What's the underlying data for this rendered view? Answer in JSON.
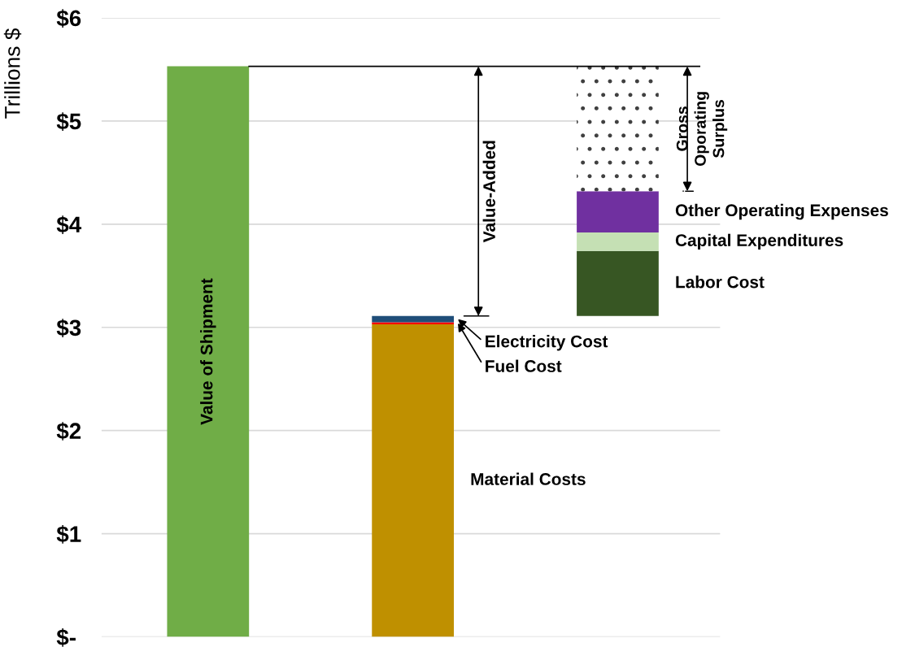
{
  "chart_data": {
    "type": "bar",
    "ylabel": "Trillions $",
    "categories": [
      null,
      null,
      null
    ],
    "series": [
      {
        "name": "Value of Shipment",
        "color": "#70ad47",
        "values": [
          5.53,
          null,
          null
        ],
        "base": [
          0,
          null,
          null
        ]
      },
      {
        "name": "Material Costs",
        "color": "#bf9000",
        "values": [
          null,
          3.03,
          null
        ],
        "base": [
          null,
          0,
          null
        ]
      },
      {
        "name": "Fuel Cost",
        "color": "#ff0000",
        "values": [
          null,
          0.02,
          null
        ],
        "base": [
          null,
          3.03,
          null
        ]
      },
      {
        "name": "Electricity Cost",
        "color": "#1f4e79",
        "values": [
          null,
          0.06,
          null
        ],
        "base": [
          null,
          3.05,
          null
        ]
      },
      {
        "name": "Labor Cost",
        "color": "#375623",
        "values": [
          null,
          null,
          0.63
        ],
        "base": [
          null,
          null,
          3.11
        ]
      },
      {
        "name": "Capital Expenditures",
        "color": "#c5e0b4",
        "values": [
          null,
          null,
          0.18
        ],
        "base": [
          null,
          null,
          3.74
        ]
      },
      {
        "name": "Other Operating Expenses",
        "color": "#7030a0",
        "values": [
          null,
          null,
          0.4
        ],
        "base": [
          null,
          null,
          3.92
        ]
      },
      {
        "name": "Gross\nOporating\nSurplus",
        "color": "#ffffff",
        "values": [
          null,
          null,
          1.21
        ],
        "base": [
          null,
          null,
          4.32
        ]
      }
    ],
    "annotations": [
      "Value-Added"
    ],
    "ylim": [
      0,
      6
    ],
    "yticks": [
      {
        "value": 0,
        "label": "$-"
      },
      {
        "value": 1,
        "label": "$1"
      },
      {
        "value": 2,
        "label": "$2"
      },
      {
        "value": 3,
        "label": "$3"
      },
      {
        "value": 4,
        "label": "$4"
      },
      {
        "value": 5,
        "label": "$5"
      },
      {
        "value": 6,
        "label": "$6"
      }
    ],
    "ref_lines": [
      {
        "axis": "y",
        "value": 5.53,
        "label": null,
        "color": "#000000"
      }
    ],
    "grid": "y"
  }
}
